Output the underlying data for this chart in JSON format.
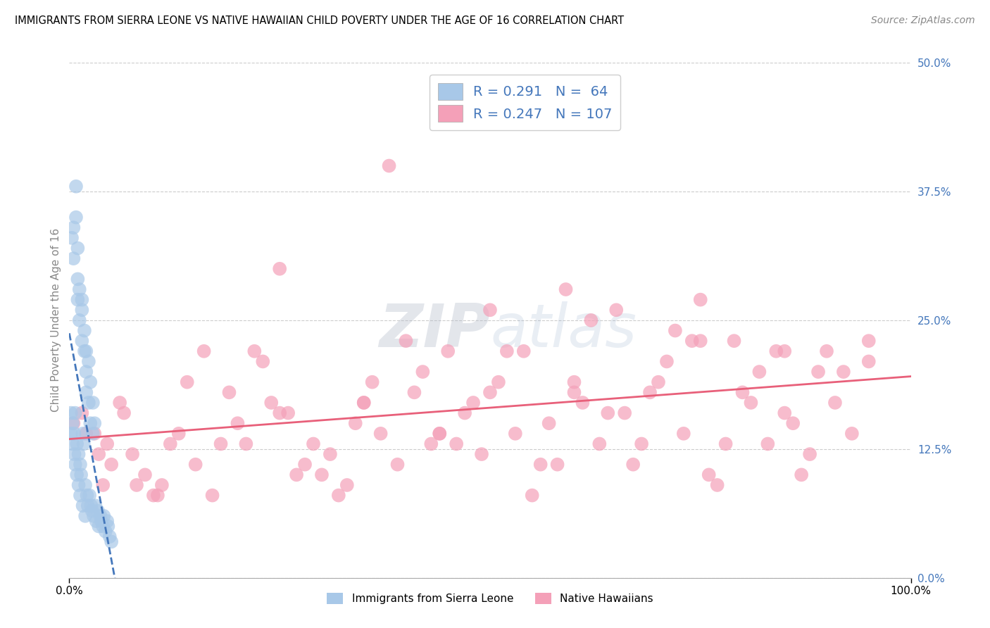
{
  "title": "IMMIGRANTS FROM SIERRA LEONE VS NATIVE HAWAIIAN CHILD POVERTY UNDER THE AGE OF 16 CORRELATION CHART",
  "source": "Source: ZipAtlas.com",
  "ylabel": "Child Poverty Under the Age of 16",
  "yticks": [
    "0.0%",
    "12.5%",
    "25.0%",
    "37.5%",
    "50.0%"
  ],
  "ytick_vals": [
    0.0,
    12.5,
    25.0,
    37.5,
    50.0
  ],
  "xlim": [
    0,
    100
  ],
  "ylim": [
    0,
    50
  ],
  "legend_labels": [
    "Immigrants from Sierra Leone",
    "Native Hawaiians"
  ],
  "legend_R": [
    0.291,
    0.247
  ],
  "legend_N": [
    64,
    107
  ],
  "blue_color": "#a8c8e8",
  "pink_color": "#f4a0b8",
  "blue_line_color": "#4477bb",
  "pink_line_color": "#e8607a",
  "watermark_zip": "ZIP",
  "watermark_atlas": "atlas",
  "blue_x": [
    0.3,
    0.5,
    0.5,
    0.8,
    0.8,
    1.0,
    1.0,
    1.0,
    1.2,
    1.2,
    1.5,
    1.5,
    1.5,
    1.8,
    1.8,
    2.0,
    2.0,
    2.0,
    2.3,
    2.3,
    2.5,
    2.5,
    2.8,
    2.8,
    3.0,
    0.2,
    0.2,
    0.4,
    0.4,
    0.6,
    0.6,
    0.7,
    0.7,
    0.9,
    0.9,
    1.1,
    1.1,
    1.3,
    1.3,
    1.4,
    1.6,
    1.6,
    1.7,
    1.9,
    1.9,
    2.1,
    2.2,
    2.4,
    2.6,
    2.7,
    2.9,
    3.1,
    3.2,
    3.4,
    3.5,
    3.7,
    3.8,
    4.0,
    4.1,
    4.3,
    4.5,
    4.6,
    4.8,
    5.0
  ],
  "blue_y": [
    33.0,
    34.0,
    31.0,
    38.0,
    35.0,
    29.0,
    27.0,
    32.0,
    28.0,
    25.0,
    26.0,
    23.0,
    27.0,
    22.0,
    24.0,
    20.0,
    22.0,
    18.0,
    21.0,
    17.0,
    19.0,
    15.0,
    17.0,
    14.0,
    15.0,
    16.0,
    14.0,
    15.0,
    13.0,
    14.0,
    12.0,
    16.0,
    11.0,
    13.0,
    10.0,
    12.0,
    9.0,
    11.0,
    8.0,
    10.0,
    14.0,
    7.0,
    13.0,
    9.0,
    6.0,
    8.0,
    7.0,
    8.0,
    7.0,
    6.5,
    6.0,
    7.0,
    5.5,
    6.5,
    5.0,
    6.0,
    5.5,
    5.0,
    6.0,
    4.5,
    5.5,
    5.0,
    4.0,
    3.5
  ],
  "pink_x": [
    0.5,
    1.5,
    3.0,
    4.5,
    6.0,
    7.5,
    9.0,
    11.0,
    13.0,
    15.0,
    17.0,
    19.0,
    21.0,
    23.0,
    25.0,
    27.0,
    29.0,
    31.0,
    33.0,
    35.0,
    37.0,
    39.0,
    41.0,
    43.0,
    45.0,
    47.0,
    49.0,
    51.0,
    53.0,
    55.0,
    57.0,
    59.0,
    61.0,
    63.0,
    65.0,
    67.0,
    69.0,
    71.0,
    73.0,
    75.0,
    77.0,
    79.0,
    81.0,
    83.0,
    85.0,
    87.0,
    89.0,
    91.0,
    93.0,
    95.0,
    2.0,
    5.0,
    8.0,
    12.0,
    16.0,
    20.0,
    24.0,
    28.0,
    32.0,
    36.0,
    40.0,
    44.0,
    48.0,
    52.0,
    56.0,
    60.0,
    64.0,
    68.0,
    72.0,
    76.0,
    80.0,
    84.0,
    88.0,
    92.0,
    3.5,
    6.5,
    10.0,
    14.0,
    18.0,
    22.0,
    26.0,
    30.0,
    34.0,
    38.0,
    42.0,
    46.0,
    50.0,
    54.0,
    58.0,
    62.0,
    66.0,
    70.0,
    74.0,
    78.0,
    82.0,
    86.0,
    90.0,
    4.0,
    10.5,
    25.0,
    44.0,
    60.0,
    75.0,
    85.0,
    95.0,
    50.0,
    35.0
  ],
  "pink_y": [
    15.0,
    16.0,
    14.0,
    13.0,
    17.0,
    12.0,
    10.0,
    9.0,
    14.0,
    11.0,
    8.0,
    18.0,
    13.0,
    21.0,
    16.0,
    10.0,
    13.0,
    12.0,
    9.0,
    17.0,
    14.0,
    11.0,
    18.0,
    13.0,
    22.0,
    16.0,
    12.0,
    19.0,
    14.0,
    8.0,
    15.0,
    28.0,
    17.0,
    13.0,
    26.0,
    11.0,
    18.0,
    21.0,
    14.0,
    27.0,
    9.0,
    23.0,
    17.0,
    13.0,
    22.0,
    10.0,
    20.0,
    17.0,
    14.0,
    23.0,
    14.0,
    11.0,
    9.0,
    13.0,
    22.0,
    15.0,
    17.0,
    11.0,
    8.0,
    19.0,
    23.0,
    14.0,
    17.0,
    22.0,
    11.0,
    19.0,
    16.0,
    13.0,
    24.0,
    10.0,
    18.0,
    22.0,
    12.0,
    20.0,
    12.0,
    16.0,
    8.0,
    19.0,
    13.0,
    22.0,
    16.0,
    10.0,
    15.0,
    40.0,
    20.0,
    13.0,
    18.0,
    22.0,
    11.0,
    25.0,
    16.0,
    19.0,
    23.0,
    13.0,
    20.0,
    15.0,
    22.0,
    9.0,
    8.0,
    30.0,
    14.0,
    18.0,
    23.0,
    16.0,
    21.0,
    26.0,
    17.0
  ]
}
